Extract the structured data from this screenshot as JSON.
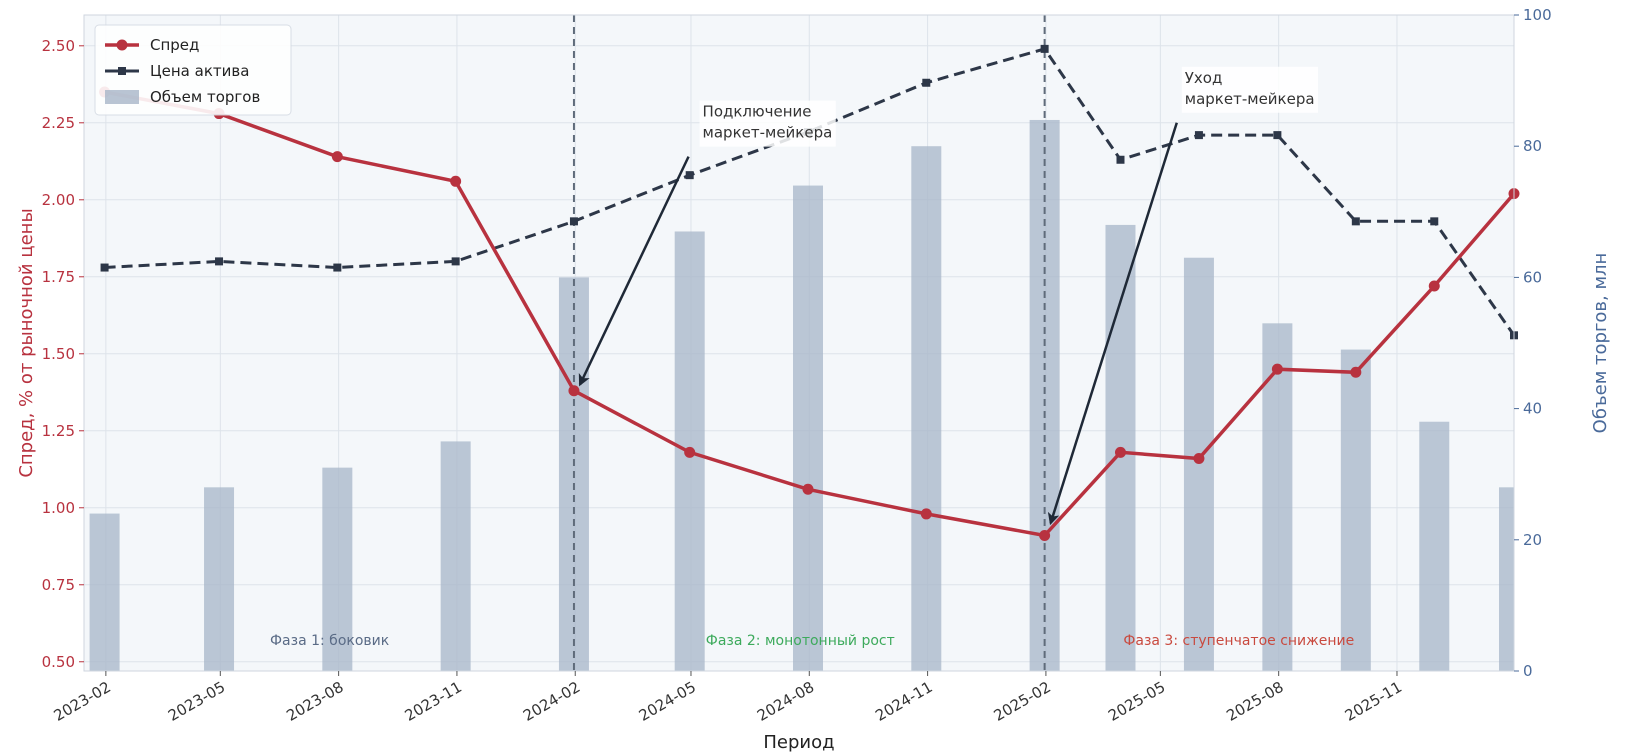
{
  "chart_data": {
    "type": "bar",
    "title": "",
    "xlabel": "Период",
    "ylabel_left": "Спред, % от рыночной цены",
    "ylabel_right": "Объем торгов, млн",
    "ylim_left": [
      0.47,
      2.6
    ],
    "ylim_right": [
      0,
      100
    ],
    "yticks_left": [
      "0.50",
      "0.75",
      "1.00",
      "1.25",
      "1.50",
      "1.75",
      "2.00",
      "2.25",
      "2.50"
    ],
    "yticks_right": [
      "0",
      "20",
      "40",
      "60",
      "80",
      "100"
    ],
    "x_range": [
      "2023-01-15",
      "2026-01-31"
    ],
    "x_tick_labels": [
      "2023-02",
      "2023-05",
      "2023-08",
      "2023-11",
      "2024-02",
      "2024-05",
      "2024-08",
      "2024-11",
      "2025-02",
      "2025-05",
      "2025-08",
      "2025-11"
    ],
    "x_tick_dates": [
      "2023-02-01",
      "2023-05-01",
      "2023-08-01",
      "2023-11-01",
      "2024-02-01",
      "2024-05-01",
      "2024-08-01",
      "2024-11-01",
      "2025-02-01",
      "2025-05-01",
      "2025-08-01",
      "2025-11-01"
    ],
    "grid": true,
    "legend_position": "top-left",
    "dates": [
      "2023-01-31",
      "2023-04-30",
      "2023-07-31",
      "2023-10-31",
      "2024-01-31",
      "2024-04-30",
      "2024-07-31",
      "2024-10-31",
      "2025-01-31",
      "2025-03-31",
      "2025-05-31",
      "2025-07-31",
      "2025-09-30",
      "2025-11-30",
      "2026-01-31"
    ],
    "series": [
      {
        "name": "Спред",
        "kind": "line",
        "axis": "left",
        "color": "#b8323f",
        "values": [
          2.35,
          2.28,
          2.14,
          2.06,
          1.38,
          1.18,
          1.06,
          0.98,
          0.91,
          1.18,
          1.16,
          1.45,
          1.44,
          1.72,
          2.02
        ]
      },
      {
        "name": "Цена актива",
        "kind": "line-dashed",
        "axis": "left",
        "color": "#2d3748",
        "values": [
          1.78,
          1.8,
          1.78,
          1.8,
          1.93,
          2.08,
          2.22,
          2.38,
          2.49,
          2.13,
          2.21,
          2.21,
          1.93,
          1.93,
          1.56
        ]
      },
      {
        "name": "Объем торгов",
        "kind": "bar",
        "axis": "right",
        "color": "#a7b5c8",
        "values": [
          24,
          28,
          31,
          35,
          60,
          67,
          74,
          80,
          84,
          68,
          63,
          53,
          49,
          38,
          28
        ]
      }
    ],
    "vlines": [
      "2024-01-31",
      "2025-01-31"
    ],
    "annotations": [
      {
        "text": [
          "Подключение",
          "маркет-мейкера"
        ],
        "point": {
          "date": "2024-01-31",
          "value": 1.4
        },
        "text_anchor": {
          "date": "2024-05-10",
          "value": 2.27
        }
      },
      {
        "text": [
          "Уход",
          "маркет-мейкера"
        ],
        "point": {
          "date": "2025-01-31",
          "value": 0.95
        },
        "text_anchor": {
          "date": "2025-05-20",
          "value": 2.38
        }
      }
    ],
    "phases": [
      {
        "text": "Фаза 1: боковик",
        "color": "#5a6b86",
        "date": "2023-07-25",
        "value": 0.57
      },
      {
        "text": "Фаза 2: монотонный рост",
        "color": "#3daa5c",
        "date": "2024-07-25",
        "value": 0.57
      },
      {
        "text": "Фаза 3: ступенчатое снижение",
        "color": "#c94a3f",
        "date": "2025-07-01",
        "value": 0.57
      }
    ],
    "colors": {
      "left_axis": "#b8323f",
      "right_axis": "#4a6a9a",
      "plot_background": "#f4f7fa",
      "grid": "#dde3ea"
    }
  }
}
